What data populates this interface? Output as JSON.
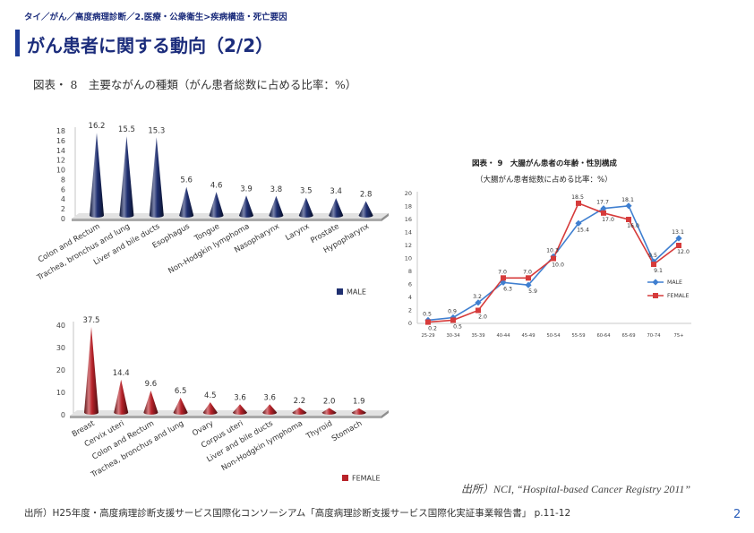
{
  "header": {
    "breadcrumb": "タイ／がん／高度病理診断／2.医療・公衆衛生>疾病構造・死亡要因",
    "title": "がん患者に関する動向（2/2）"
  },
  "figure_caption": "図表・ 8　主要ながんの種類（がん患者総数に占める比率：%）",
  "chart_data": [
    {
      "type": "bar",
      "categories": [
        "Colon and Rectum",
        "Trachea, bronchus and lung",
        "Liver and bile ducts",
        "Esophagus",
        "Tongue",
        "Non-Hodgkin lymphoma",
        "Nasopharynx",
        "Larynx",
        "Prostate",
        "Hypopharynx"
      ],
      "series": [
        {
          "name": "MALE",
          "values": [
            16.2,
            15.5,
            15.3,
            5.6,
            4.6,
            3.9,
            3.8,
            3.5,
            3.4,
            2.8
          ],
          "color": "#1f2f70"
        }
      ],
      "ylim": [
        0,
        18
      ],
      "ytick_step": 2,
      "grid": false,
      "legend": "bottom-right"
    },
    {
      "type": "bar",
      "categories": [
        "Breast",
        "Cervix uteri",
        "Colon and Rectum",
        "Trachea, bronchus and lung",
        "Ovary",
        "Corpus uteri",
        "Liver and bile ducts",
        "Non-Hodgkin lymphoma",
        "Thyroid",
        "Stomach"
      ],
      "series": [
        {
          "name": "FEMALE",
          "values": [
            37.5,
            14.4,
            9.6,
            6.5,
            4.5,
            3.6,
            3.6,
            2.2,
            2.0,
            1.9
          ],
          "color": "#b8232a"
        }
      ],
      "ylim": [
        0,
        40
      ],
      "ytick_step": 10,
      "grid": false,
      "legend": "bottom-right"
    },
    {
      "type": "line",
      "title": "図表・ 9　大腸がん患者の年齢・性別構成",
      "subtitle": "（大腸がん患者総数に占める比率：%）",
      "categories": [
        "25-29",
        "30-34",
        "35-39",
        "40-44",
        "45-49",
        "50-54",
        "55-59",
        "60-64",
        "65-69",
        "70-74",
        "75+"
      ],
      "series": [
        {
          "name": "MALE",
          "values": [
            0.5,
            0.9,
            3.2,
            6.3,
            5.9,
            10.3,
            15.4,
            17.7,
            18.1,
            9.5,
            13.1
          ],
          "color": "#3f7fd0"
        },
        {
          "name": "FEMALE",
          "values": [
            0.2,
            0.5,
            2.0,
            7.0,
            7.0,
            10.0,
            18.5,
            17.0,
            16.0,
            9.1,
            12.0
          ],
          "color": "#d63b3b"
        }
      ],
      "ylim": [
        0,
        20
      ],
      "ytick_step": 2,
      "grid": false,
      "legend": "right"
    }
  ],
  "chart_source": "出所）NCI, “Hospital-based Cancer Registry 2011”",
  "footer": {
    "source": "出所）H25年度・高度病理診断支援サービス国際化コンソーシアム「高度病理診断支援サービス国際化実証事業報告書」 p.11-12",
    "page_number": "2"
  },
  "theme": {
    "accent": "#1e3c96",
    "title_text": "#1c2d7c",
    "page_number": "#2b5fbb"
  }
}
